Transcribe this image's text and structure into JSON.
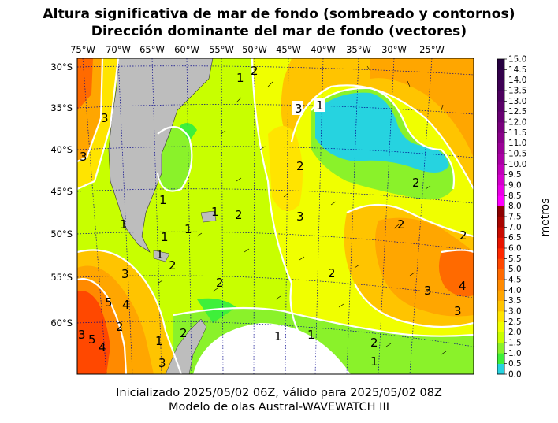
{
  "title": {
    "line1": "Altura significativa de mar de fondo (sombreado y contornos)",
    "line2": "Dirección dominante del mar de fondo (vectores)"
  },
  "footer": {
    "line1": "Inicializado 2025/05/02 06Z, válido para 2025/05/02 08Z",
    "line2": "Modelo de olas Austral-WAVEWATCH III"
  },
  "axes": {
    "lon_labels": [
      "75°W",
      "70°W",
      "65°W",
      "60°W",
      "55°W",
      "50°W",
      "45°W",
      "40°W",
      "35°W",
      "30°W",
      "25°W"
    ],
    "lat_labels": [
      "30°S",
      "35°S",
      "40°S",
      "45°S",
      "50°S",
      "55°S",
      "60°S"
    ]
  },
  "colorbar": {
    "label": "metros",
    "ticks": [
      "0.0",
      "0.5",
      "1.0",
      "1.5",
      "2.0",
      "2.5",
      "3.0",
      "3.5",
      "4.0",
      "4.5",
      "5.0",
      "5.5",
      "6.0",
      "6.5",
      "7.0",
      "7.5",
      "8.0",
      "8.5",
      "9.0",
      "9.5",
      "10.0",
      "10.5",
      "11.0",
      "11.5",
      "12.0",
      "12.5",
      "13.0",
      "13.5",
      "14.0",
      "14.5",
      "15.0"
    ],
    "colors": [
      "#26d3e0",
      "#3ef03a",
      "#8af22a",
      "#c8ff00",
      "#f0ff00",
      "#ffe400",
      "#ffc400",
      "#ffa600",
      "#ff8a00",
      "#ff6a00",
      "#ff4800",
      "#ff2800",
      "#e81400",
      "#c80a00",
      "#a80400",
      "#8c0000",
      "#ff00ff",
      "#ea00e6",
      "#d400cc",
      "#c000b8",
      "#aa00a4",
      "#9a0096",
      "#880088",
      "#78007c",
      "#680072",
      "#5a0068",
      "#4c005e",
      "#3e0054",
      "#32004a",
      "#260040"
    ]
  },
  "contour_labels": [
    "1",
    "2",
    "3",
    "4",
    "5"
  ],
  "colors": {
    "land": "#bdbdbd",
    "grid": "#00008b",
    "contour": "#ffffff"
  }
}
